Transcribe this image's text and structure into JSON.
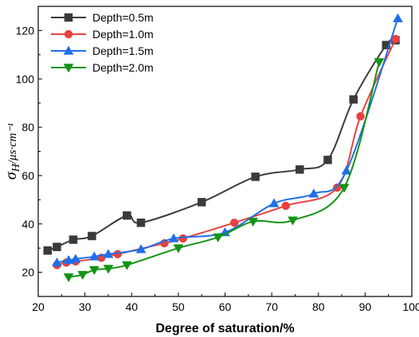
{
  "chart_data": {
    "type": "line",
    "xlabel": "Degree of saturation/%",
    "ylabel": {
      "symbol": "σ",
      "subscript": "H",
      "unit": "/μs·cm⁻¹"
    },
    "xlim": [
      20,
      100
    ],
    "ylim": [
      10,
      130
    ],
    "xticks": [
      20,
      30,
      40,
      50,
      60,
      70,
      80,
      90,
      100
    ],
    "yticks": [
      20,
      40,
      60,
      80,
      100,
      120
    ],
    "grid": false,
    "legend_position": "top-left",
    "series": [
      {
        "name": "Depth=0.5m",
        "color": "#3a3a3a",
        "marker": "square",
        "x": [
          22,
          24,
          27.5,
          31.5,
          39,
          42,
          55,
          66.5,
          76,
          82,
          87.5,
          94.5,
          96.5
        ],
        "y": [
          29,
          30.5,
          33.5,
          35,
          43.5,
          40.5,
          49,
          59.5,
          62.5,
          66.5,
          91.5,
          114,
          116
        ]
      },
      {
        "name": "Depth=1.0m",
        "color": "#e8413e",
        "marker": "circle",
        "x": [
          24,
          26,
          28,
          33.5,
          37,
          47,
          51,
          62,
          73,
          84,
          89,
          96.5
        ],
        "y": [
          23,
          24,
          24.5,
          26,
          27.5,
          32,
          34,
          40.5,
          47.5,
          55,
          84.5,
          116.5
        ]
      },
      {
        "name": "Depth=1.5m",
        "color": "#1f6fe8",
        "marker": "triangle-up",
        "x": [
          24,
          26.5,
          28,
          32,
          35,
          42,
          49,
          60,
          70.5,
          79,
          86,
          97
        ],
        "y": [
          24,
          25,
          25.5,
          26.5,
          27.5,
          29.5,
          34,
          36.5,
          48.5,
          52.5,
          62,
          125
        ]
      },
      {
        "name": "Depth=2.0m",
        "color": "#139416",
        "marker": "triangle-down",
        "x": [
          26.5,
          29.5,
          32,
          35,
          39,
          50,
          58.5,
          66,
          74.5,
          85.5,
          93
        ],
        "y": [
          18,
          19,
          21,
          21.5,
          23,
          30,
          34.5,
          41,
          41.5,
          55,
          107
        ]
      }
    ]
  }
}
